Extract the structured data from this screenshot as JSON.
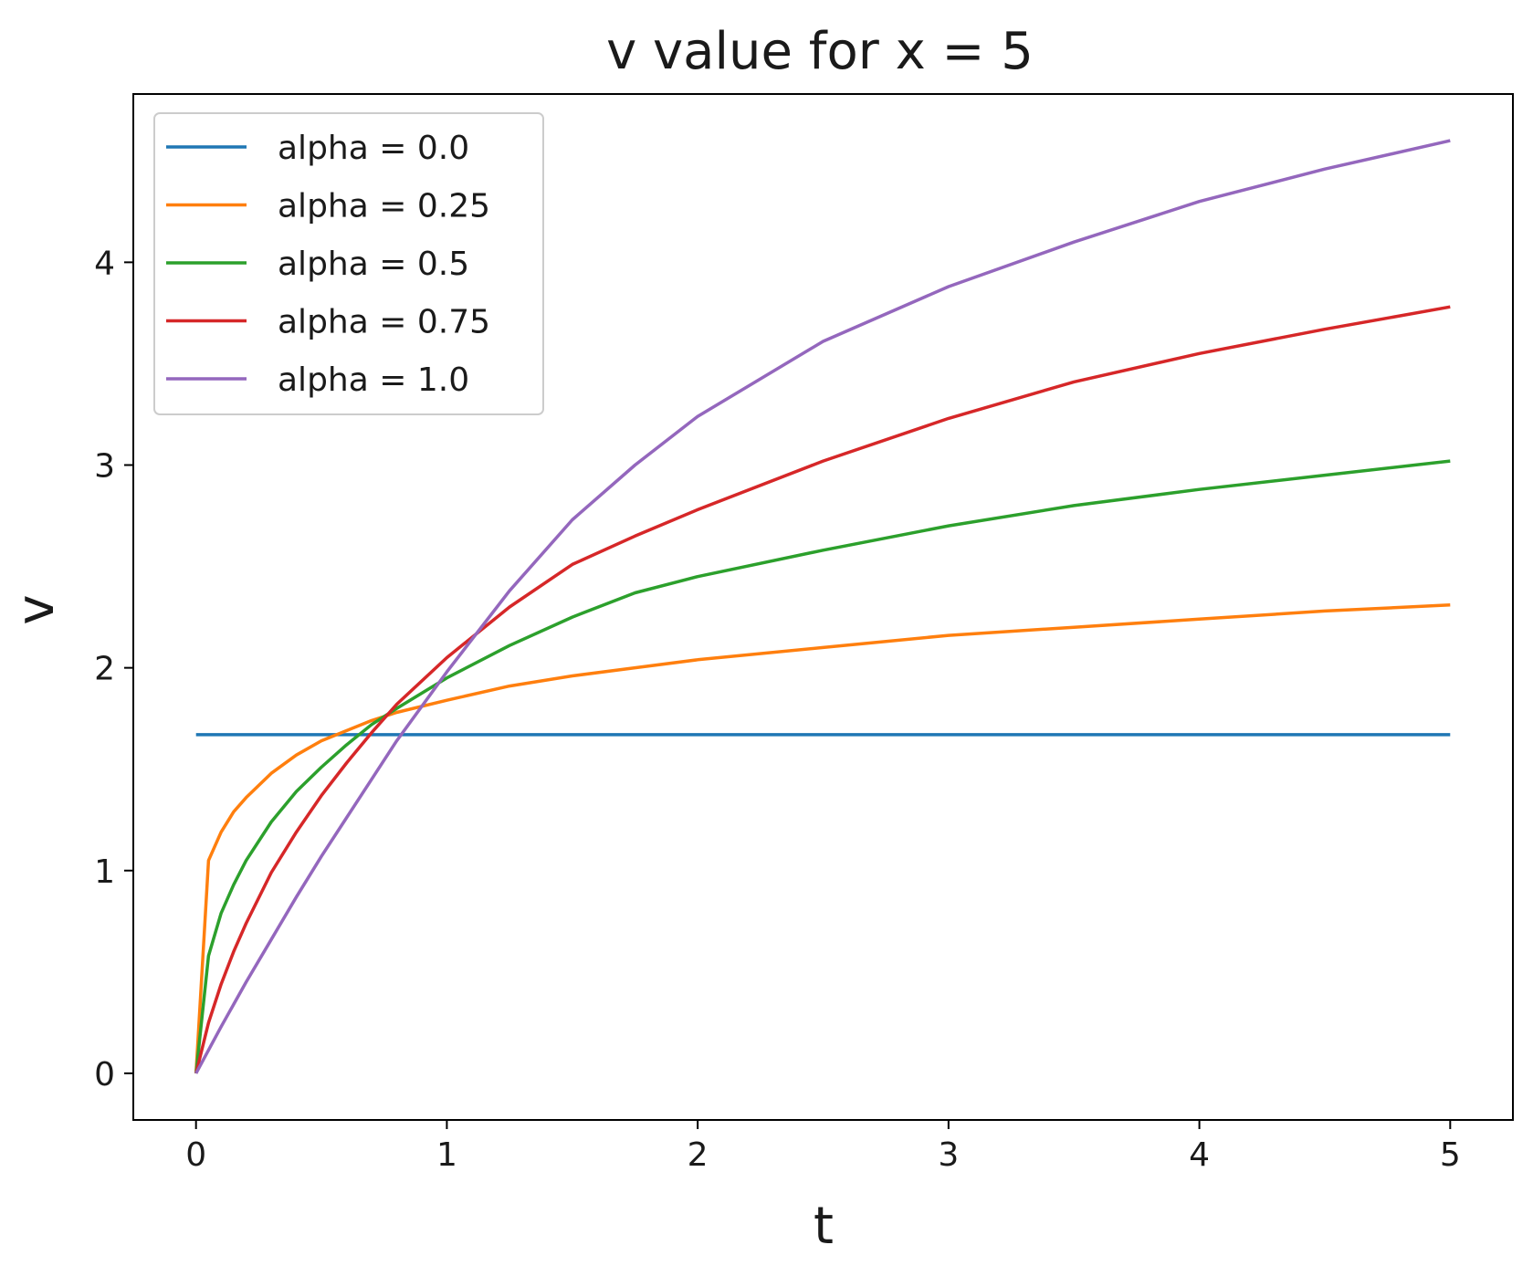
{
  "chart_data": {
    "type": "line",
    "title": "v value for x = 5",
    "xlabel": "t",
    "ylabel": "v",
    "xlim": [
      -0.25,
      5.25
    ],
    "ylim": [
      -0.23,
      4.83
    ],
    "xticks": [
      0,
      1,
      2,
      3,
      4,
      5
    ],
    "yticks": [
      0,
      1,
      2,
      3,
      4
    ],
    "grid": false,
    "legend_position": "upper-left",
    "series": [
      {
        "name": "alpha = 0.0",
        "color": "#1f77b4",
        "x": [
          0,
          0.5,
          1,
          1.5,
          2,
          2.5,
          3,
          3.5,
          4,
          4.5,
          5
        ],
        "y": [
          1.67,
          1.67,
          1.67,
          1.67,
          1.67,
          1.67,
          1.67,
          1.67,
          1.67,
          1.67,
          1.67
        ]
      },
      {
        "name": "alpha = 0.25",
        "color": "#ff7f0e",
        "x": [
          0,
          0.05,
          0.1,
          0.15,
          0.2,
          0.3,
          0.4,
          0.5,
          0.6,
          0.7,
          0.8,
          1,
          1.25,
          1.5,
          1.75,
          2,
          2.5,
          3,
          3.5,
          4,
          4.5,
          5
        ],
        "y": [
          0,
          1.05,
          1.19,
          1.29,
          1.36,
          1.48,
          1.57,
          1.64,
          1.69,
          1.74,
          1.78,
          1.84,
          1.91,
          1.96,
          2.0,
          2.04,
          2.1,
          2.16,
          2.2,
          2.24,
          2.28,
          2.31
        ]
      },
      {
        "name": "alpha = 0.5",
        "color": "#2ca02c",
        "x": [
          0,
          0.05,
          0.1,
          0.15,
          0.2,
          0.3,
          0.4,
          0.5,
          0.6,
          0.7,
          0.8,
          1,
          1.25,
          1.5,
          1.75,
          2,
          2.5,
          3,
          3.5,
          4,
          4.5,
          5
        ],
        "y": [
          0,
          0.58,
          0.79,
          0.93,
          1.05,
          1.24,
          1.39,
          1.51,
          1.62,
          1.72,
          1.8,
          1.95,
          2.11,
          2.25,
          2.37,
          2.45,
          2.58,
          2.7,
          2.8,
          2.88,
          2.95,
          3.02
        ]
      },
      {
        "name": "alpha = 0.75",
        "color": "#d62728",
        "x": [
          0,
          0.05,
          0.1,
          0.15,
          0.2,
          0.3,
          0.4,
          0.5,
          0.6,
          0.7,
          0.8,
          1,
          1.25,
          1.5,
          1.75,
          2,
          2.5,
          3,
          3.5,
          4,
          4.5,
          5
        ],
        "y": [
          0,
          0.25,
          0.44,
          0.6,
          0.74,
          0.99,
          1.19,
          1.37,
          1.53,
          1.68,
          1.82,
          2.05,
          2.3,
          2.51,
          2.65,
          2.78,
          3.02,
          3.23,
          3.41,
          3.55,
          3.67,
          3.78
        ]
      },
      {
        "name": "alpha = 1.0",
        "color": "#9467bd",
        "x": [
          0,
          0.1,
          0.2,
          0.3,
          0.4,
          0.5,
          0.6,
          0.7,
          0.8,
          1,
          1.25,
          1.5,
          1.75,
          2,
          2.5,
          3,
          3.5,
          4,
          4.5,
          5
        ],
        "y": [
          0,
          0.23,
          0.45,
          0.66,
          0.87,
          1.07,
          1.26,
          1.45,
          1.64,
          1.98,
          2.38,
          2.73,
          3.0,
          3.24,
          3.61,
          3.88,
          4.1,
          4.3,
          4.46,
          4.6
        ]
      }
    ]
  }
}
